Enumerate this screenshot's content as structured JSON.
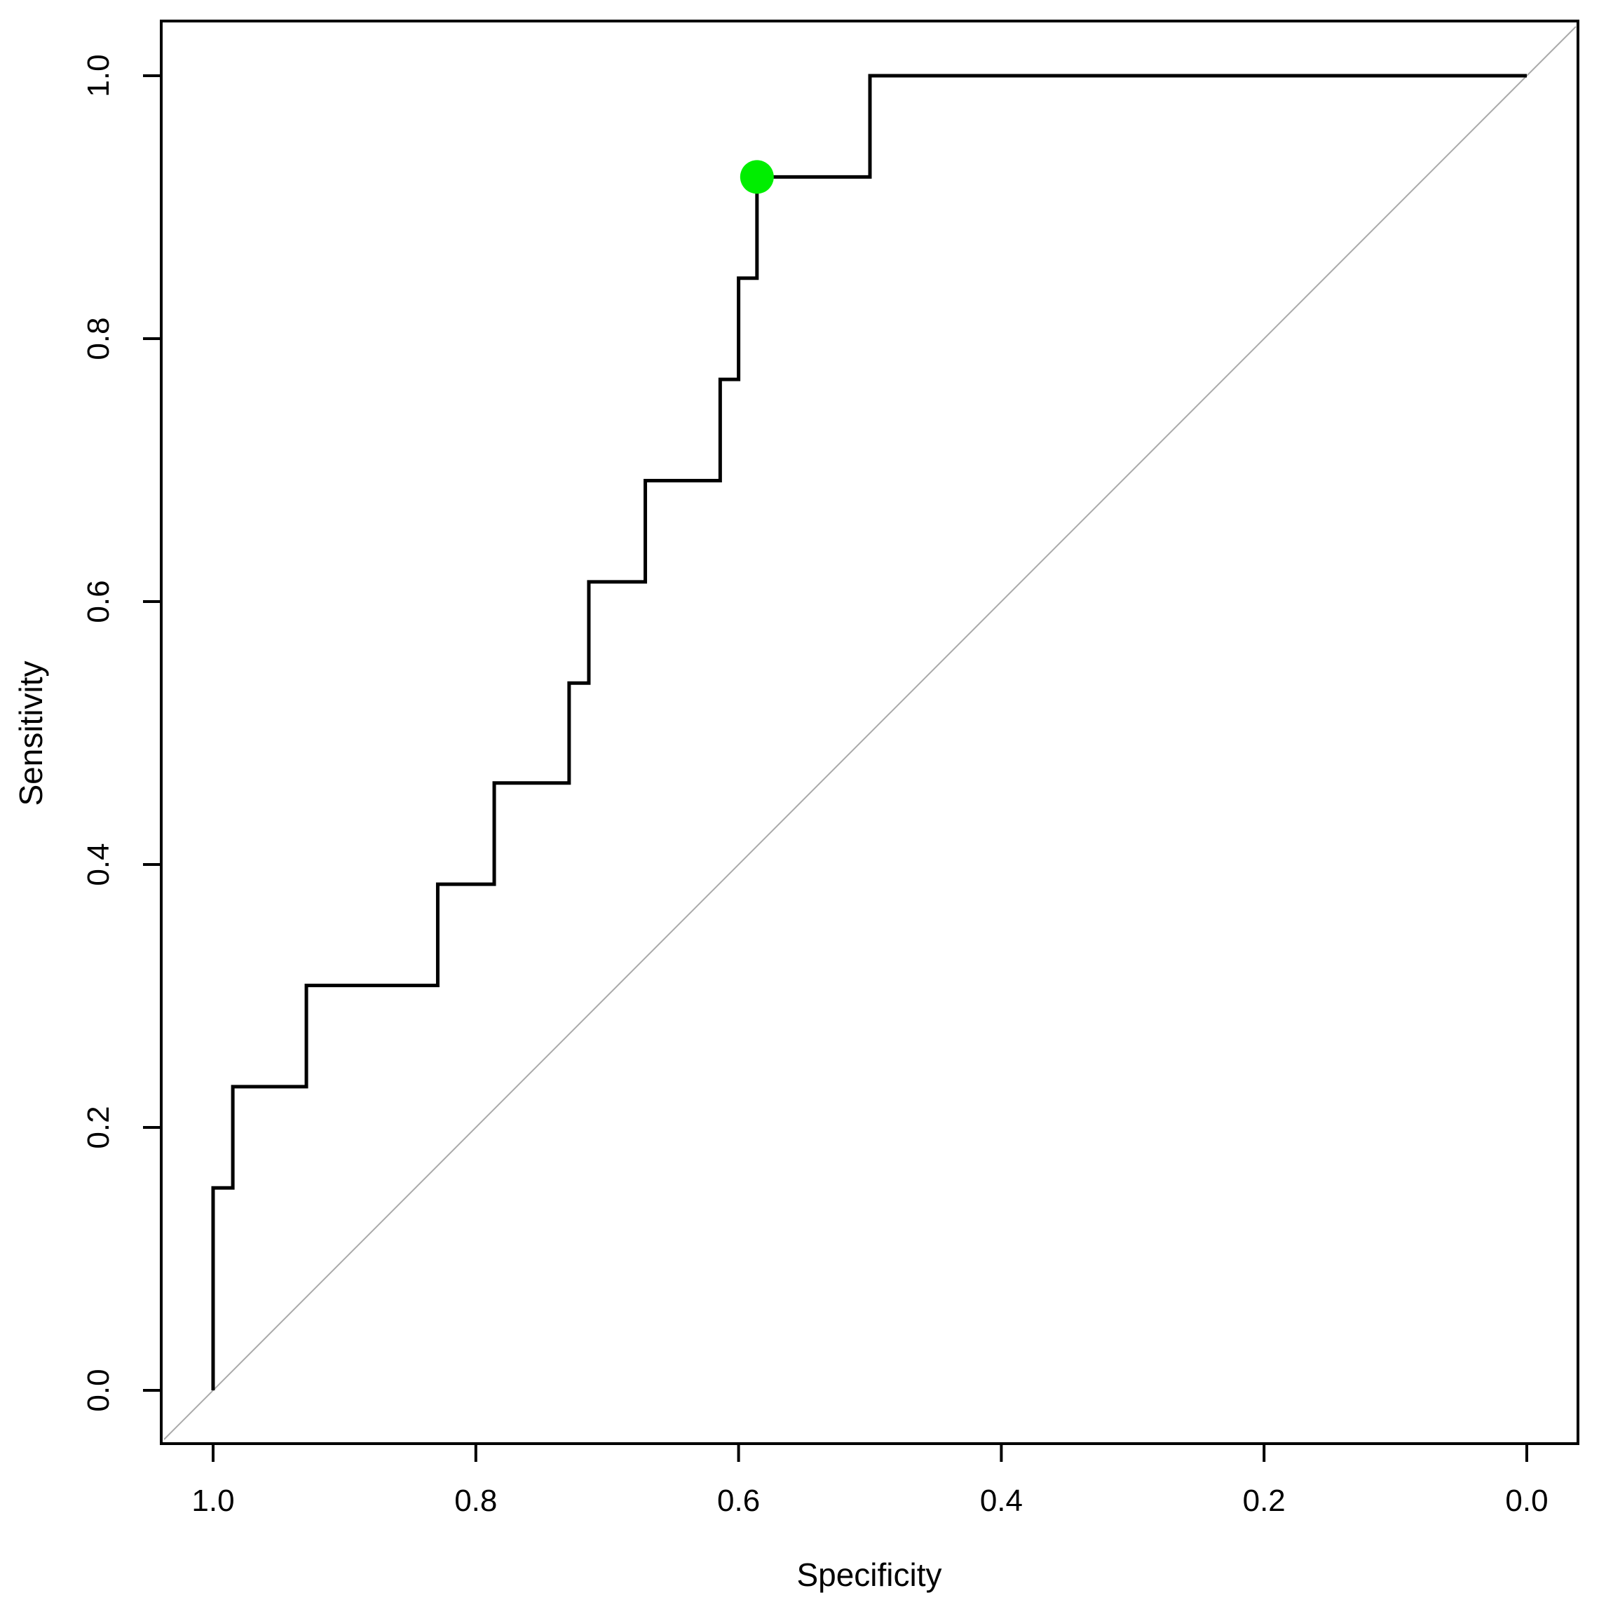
{
  "chart_data": {
    "type": "line",
    "title": "",
    "xlabel": "Specificity",
    "ylabel": "Sensitivity",
    "xlim": [
      1.0,
      0.0
    ],
    "x_reversed": true,
    "ylim": [
      0.0,
      1.0
    ],
    "x_ticks": [
      "1.0",
      "0.8",
      "0.6",
      "0.4",
      "0.2",
      "0.0"
    ],
    "x_tick_values": [
      1.0,
      0.8,
      0.6,
      0.4,
      0.2,
      0.0
    ],
    "y_ticks": [
      "0.0",
      "0.2",
      "0.4",
      "0.6",
      "0.8",
      "1.0"
    ],
    "y_tick_values": [
      0.0,
      0.2,
      0.4,
      0.6,
      0.8,
      1.0
    ],
    "grid": false,
    "legend": "none",
    "series": [
      {
        "specificity": [
          1.0,
          1.0,
          0.985,
          0.985,
          0.929,
          0.929,
          0.829,
          0.829,
          0.786,
          0.786,
          0.729,
          0.729,
          0.714,
          0.714,
          0.671,
          0.671,
          0.614,
          0.614,
          0.6,
          0.6,
          0.586,
          0.586,
          0.5,
          0.5,
          0.0
        ],
        "sensitivity": [
          0.0,
          0.154,
          0.154,
          0.231,
          0.231,
          0.308,
          0.308,
          0.385,
          0.385,
          0.462,
          0.462,
          0.538,
          0.538,
          0.615,
          0.615,
          0.692,
          0.692,
          0.769,
          0.769,
          0.846,
          0.846,
          0.923,
          0.923,
          1.0,
          1.0
        ],
        "color": "#000000"
      }
    ],
    "reference_line": {
      "from": [
        1.0,
        0.0
      ],
      "to": [
        0.0,
        1.0
      ],
      "color": "#aaaaaa"
    },
    "highlight_point": {
      "specificity": 0.586,
      "sensitivity": 0.923,
      "color": "#00ee00"
    }
  }
}
